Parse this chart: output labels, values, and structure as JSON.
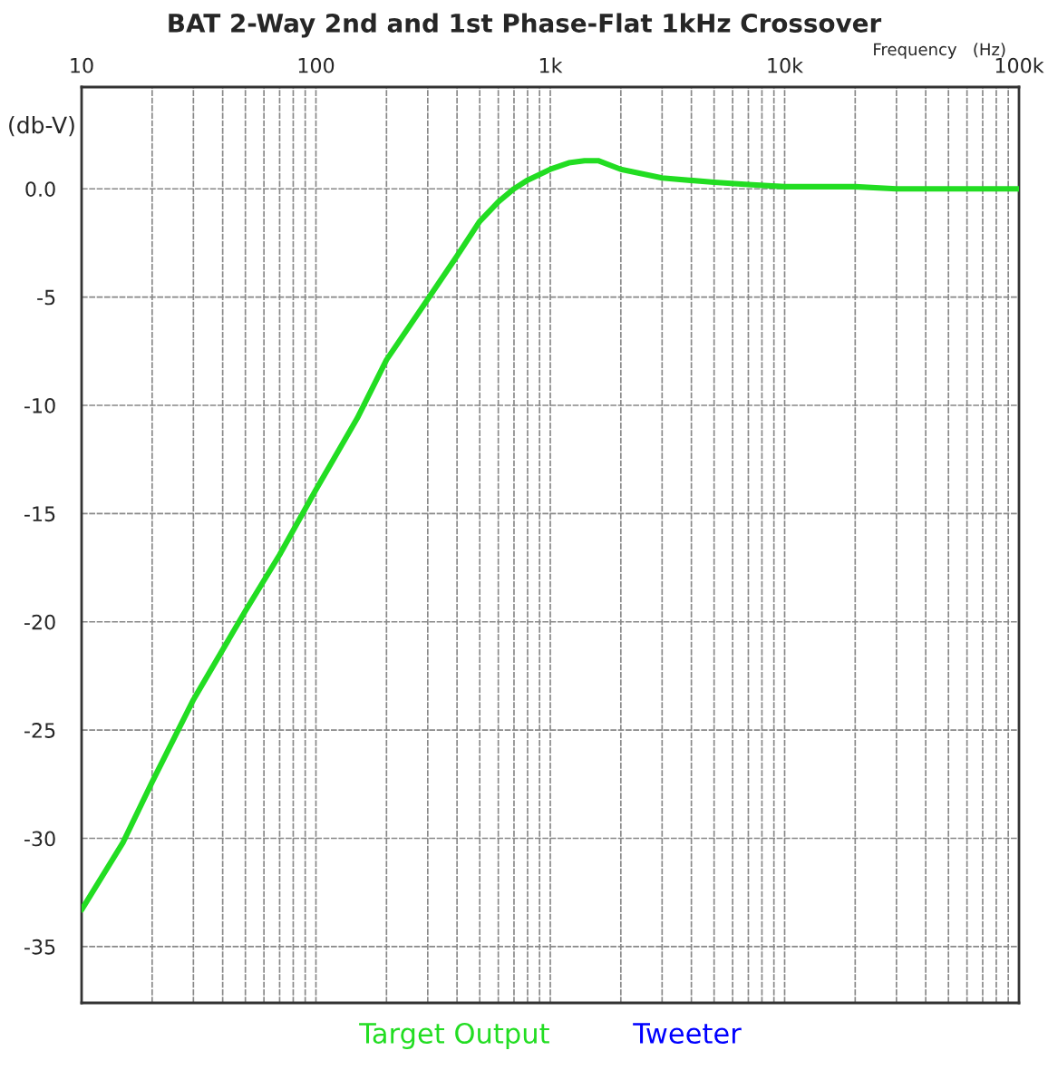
{
  "chart_data": {
    "type": "line",
    "title": "BAT 2-Way 2nd and 1st Phase-Flat 1kHz Crossover",
    "xlabel": "Frequency   (Hz)",
    "ylabel": "(db-V)",
    "log": "x",
    "grid": true,
    "legend": "bottom",
    "line_style": "solid",
    "marker": "none",
    "x": [
      10,
      15,
      20,
      30,
      50,
      70,
      100,
      150,
      200,
      300,
      400,
      500,
      600,
      700,
      800,
      1000,
      1200,
      1400,
      1600,
      2000,
      3000,
      5000,
      7000,
      10000,
      20000,
      30000,
      50000,
      100000
    ],
    "series": [
      {
        "name": "Target Output",
        "color": "#22dd22",
        "values": [
          -33.3,
          -30.2,
          -27.4,
          -23.6,
          -19.5,
          -16.9,
          -13.9,
          -10.6,
          -7.9,
          -5.1,
          -3.1,
          -1.5,
          -0.6,
          0.0,
          0.4,
          0.9,
          1.2,
          1.3,
          1.3,
          0.9,
          0.5,
          0.3,
          0.2,
          0.1,
          0.1,
          0.0,
          0.0,
          0.0
        ]
      },
      {
        "name": "Tweeter",
        "color": "#0000ff",
        "values": [
          null,
          null,
          null,
          null,
          null,
          null,
          null,
          null,
          null,
          null,
          null,
          null,
          null,
          null,
          null,
          null,
          null,
          null,
          null,
          null,
          null,
          null,
          null,
          null,
          null,
          null,
          null,
          null
        ]
      }
    ],
    "xlim": [
      10,
      100000
    ],
    "ylim": [
      -37.6,
      4.7
    ],
    "xticks": [
      10,
      {
        "value": 20,
        "label": null
      },
      {
        "value": 30,
        "label": null
      },
      {
        "value": 40,
        "label": null
      },
      {
        "value": 50,
        "label": null
      },
      {
        "value": 60,
        "label": null
      },
      {
        "value": 70,
        "label": null
      },
      {
        "value": 80,
        "label": null
      },
      {
        "value": 90,
        "label": null
      },
      100,
      {
        "value": 200,
        "label": null
      },
      {
        "value": 300,
        "label": null
      },
      {
        "value": 400,
        "label": null
      },
      {
        "value": 500,
        "label": null
      },
      {
        "value": 600,
        "label": null
      },
      {
        "value": 700,
        "label": null
      },
      {
        "value": 800,
        "label": null
      },
      {
        "value": 900,
        "label": null
      },
      {
        "value": 1000,
        "label": "1k"
      },
      {
        "value": 2000,
        "label": null
      },
      {
        "value": 3000,
        "label": null
      },
      {
        "value": 4000,
        "label": null
      },
      {
        "value": 5000,
        "label": null
      },
      {
        "value": 6000,
        "label": null
      },
      {
        "value": 7000,
        "label": null
      },
      {
        "value": 8000,
        "label": null
      },
      {
        "value": 9000,
        "label": null
      },
      {
        "value": 10000,
        "label": "10k"
      },
      {
        "value": 20000,
        "label": null
      },
      {
        "value": 30000,
        "label": null
      },
      {
        "value": 40000,
        "label": null
      },
      {
        "value": 50000,
        "label": null
      },
      {
        "value": 60000,
        "label": null
      },
      {
        "value": 70000,
        "label": null
      },
      {
        "value": 80000,
        "label": null
      },
      {
        "value": 90000,
        "label": null
      },
      {
        "value": 100000,
        "label": "100k"
      }
    ],
    "yticks": [
      {
        "value": 0,
        "label": "0.0"
      },
      -5,
      -10,
      -15,
      -20,
      -25,
      -30,
      -35
    ]
  }
}
